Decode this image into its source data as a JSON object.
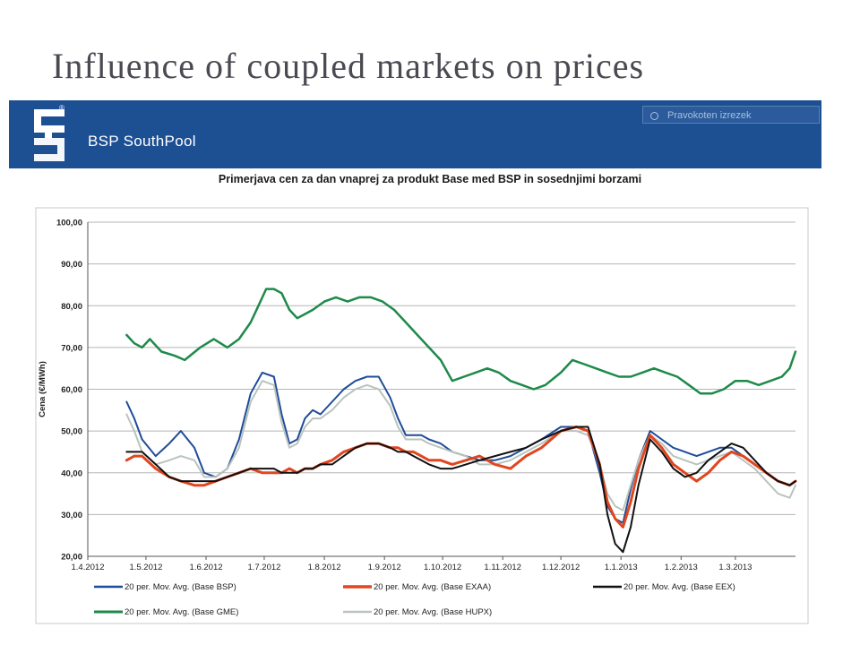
{
  "slide": {
    "title": "Influence of coupled markets on prices"
  },
  "banner": {
    "brand": "BSP SouthPool",
    "search_placeholder": "Pravokoten izrezek",
    "reg_mark": "®"
  },
  "colors": {
    "banner": "#1d4f93",
    "BSP": "#1f4c9a",
    "EXAA": "#e0461f",
    "EEX": "#111111",
    "GME": "#1e8a4a",
    "HUPX": "#b9c4be"
  },
  "chart_data": {
    "type": "line",
    "title": "Primerjava cen za dan vnaprej za produkt Base med BSP in sosednjimi borzami",
    "ylabel": "Cena (€/MWh)",
    "xlabel": "",
    "ylim": [
      20,
      100
    ],
    "y_ticks": [
      "100,00",
      "90,00",
      "80,00",
      "70,00",
      "60,00",
      "50,00",
      "40,00",
      "30,00",
      "20,00"
    ],
    "y_tick_values": [
      100,
      90,
      80,
      70,
      60,
      50,
      40,
      30,
      20
    ],
    "x_ticks": [
      "1.4.2012",
      "1.5.2012",
      "1.6.2012",
      "1.7.2012",
      "1.8.2012",
      "1.9.2012",
      "1.10.2012",
      "1.11.2012",
      "1.12.2012",
      "1.1.2013",
      "1.2.2013",
      "1.3.2013"
    ],
    "x_tick_days": [
      0,
      30,
      61,
      91,
      122,
      153,
      183,
      214,
      244,
      275,
      306,
      334
    ],
    "xlim": [
      0,
      365
    ],
    "grid": true,
    "legend_position": "bottom",
    "series": [
      {
        "key": "BSP",
        "name": "20 per. Mov. Avg. (Base BSP)",
        "width": 2,
        "x": [
          20,
          24,
          28,
          35,
          42,
          48,
          55,
          60,
          66,
          72,
          78,
          84,
          90,
          96,
          100,
          104,
          108,
          112,
          116,
          120,
          126,
          132,
          138,
          144,
          150,
          156,
          160,
          164,
          168,
          172,
          176,
          182,
          188,
          195,
          202,
          210,
          218,
          226,
          234,
          244,
          252,
          258,
          264,
          268,
          272,
          276,
          280,
          284,
          290,
          296,
          302,
          308,
          314,
          320,
          326,
          332,
          338,
          344,
          350,
          356,
          362,
          365
        ],
        "y": [
          57,
          53,
          48,
          44,
          47,
          50,
          46,
          40,
          39,
          41,
          48,
          59,
          64,
          63,
          54,
          47,
          48,
          53,
          55,
          54,
          57,
          60,
          62,
          63,
          63,
          58,
          53,
          49,
          49,
          49,
          48,
          47,
          45,
          44,
          43,
          43,
          44,
          46,
          48,
          51,
          51,
          50,
          40,
          32,
          29,
          28,
          36,
          43,
          50,
          48,
          46,
          45,
          44,
          45,
          46,
          46,
          44,
          42,
          40,
          38,
          37,
          38
        ]
      },
      {
        "key": "HUPX",
        "name": "20 per. Mov. Avg. (Base HUPX)",
        "width": 2,
        "x": [
          20,
          24,
          28,
          35,
          42,
          48,
          55,
          60,
          66,
          72,
          78,
          84,
          90,
          96,
          100,
          104,
          108,
          112,
          116,
          120,
          126,
          132,
          138,
          144,
          150,
          156,
          160,
          164,
          168,
          172,
          176,
          182,
          188,
          195,
          202,
          210,
          218,
          226,
          234,
          244,
          252,
          258,
          264,
          268,
          272,
          276,
          280,
          284,
          290,
          296,
          302,
          308,
          314,
          320,
          326,
          332,
          338,
          344,
          350,
          356,
          362,
          365
        ],
        "y": [
          54,
          50,
          45,
          42,
          43,
          44,
          43,
          39,
          39,
          41,
          46,
          57,
          62,
          61,
          52,
          46,
          47,
          51,
          53,
          53,
          55,
          58,
          60,
          61,
          60,
          56,
          51,
          48,
          48,
          48,
          47,
          46,
          45,
          44,
          42,
          42,
          43,
          45,
          47,
          50,
          50,
          49,
          42,
          35,
          32,
          31,
          37,
          43,
          49,
          47,
          44,
          43,
          42,
          43,
          44,
          45,
          43,
          41,
          38,
          35,
          34,
          37
        ]
      },
      {
        "key": "EXAA",
        "name": "20 per. Mov. Avg. (Base EXAA)",
        "width": 3,
        "x": [
          20,
          24,
          28,
          35,
          42,
          48,
          55,
          60,
          66,
          72,
          78,
          84,
          90,
          96,
          100,
          104,
          108,
          112,
          116,
          120,
          126,
          132,
          138,
          144,
          150,
          156,
          160,
          164,
          168,
          172,
          176,
          182,
          188,
          195,
          202,
          210,
          218,
          226,
          234,
          244,
          252,
          258,
          264,
          268,
          272,
          276,
          280,
          284,
          290,
          296,
          302,
          308,
          314,
          320,
          326,
          332,
          338,
          344,
          350,
          356,
          362,
          365
        ],
        "y": [
          43,
          44,
          44,
          41,
          39,
          38,
          37,
          37,
          38,
          39,
          40,
          41,
          40,
          40,
          40,
          41,
          40,
          41,
          41,
          42,
          43,
          45,
          46,
          47,
          47,
          46,
          46,
          45,
          45,
          44,
          43,
          43,
          42,
          43,
          44,
          42,
          41,
          44,
          46,
          50,
          51,
          50,
          42,
          33,
          29,
          27,
          33,
          41,
          49,
          46,
          42,
          40,
          38,
          40,
          43,
          45,
          44,
          42,
          40,
          38,
          37,
          38
        ]
      },
      {
        "key": "EEX",
        "name": "20 per. Mov. Avg. (Base EEX)",
        "width": 2,
        "x": [
          20,
          24,
          28,
          35,
          42,
          48,
          55,
          60,
          66,
          72,
          78,
          84,
          90,
          96,
          100,
          104,
          108,
          112,
          116,
          120,
          126,
          132,
          138,
          144,
          150,
          156,
          160,
          164,
          168,
          172,
          176,
          182,
          188,
          195,
          202,
          210,
          218,
          226,
          234,
          244,
          252,
          258,
          264,
          268,
          272,
          276,
          280,
          284,
          290,
          296,
          302,
          308,
          314,
          320,
          326,
          332,
          338,
          344,
          350,
          356,
          362,
          365
        ],
        "y": [
          45,
          45,
          45,
          42,
          39,
          38,
          38,
          38,
          38,
          39,
          40,
          41,
          41,
          41,
          40,
          40,
          40,
          41,
          41,
          42,
          42,
          44,
          46,
          47,
          47,
          46,
          45,
          45,
          44,
          43,
          42,
          41,
          41,
          42,
          43,
          44,
          45,
          46,
          48,
          50,
          51,
          51,
          42,
          30,
          23,
          21,
          27,
          37,
          48,
          45,
          41,
          39,
          40,
          43,
          45,
          47,
          46,
          43,
          40,
          38,
          37,
          38
        ]
      },
      {
        "key": "GME",
        "name": "20 per. Mov. Avg. (Base GME)",
        "width": 2.5,
        "x": [
          20,
          24,
          28,
          32,
          38,
          45,
          50,
          58,
          65,
          72,
          78,
          84,
          88,
          92,
          96,
          100,
          104,
          108,
          112,
          116,
          122,
          128,
          134,
          140,
          146,
          152,
          158,
          164,
          170,
          176,
          182,
          188,
          194,
          200,
          206,
          212,
          218,
          224,
          230,
          236,
          244,
          250,
          256,
          262,
          268,
          274,
          280,
          286,
          292,
          298,
          304,
          310,
          316,
          322,
          328,
          334,
          340,
          346,
          352,
          358,
          362,
          365
        ],
        "y": [
          73,
          71,
          70,
          72,
          69,
          68,
          67,
          70,
          72,
          70,
          72,
          76,
          80,
          84,
          84,
          83,
          79,
          77,
          78,
          79,
          81,
          82,
          81,
          82,
          82,
          81,
          79,
          76,
          73,
          70,
          67,
          62,
          63,
          64,
          65,
          64,
          62,
          61,
          60,
          61,
          64,
          67,
          66,
          65,
          64,
          63,
          63,
          64,
          65,
          64,
          63,
          61,
          59,
          59,
          60,
          62,
          62,
          61,
          62,
          63,
          65,
          69
        ]
      }
    ]
  }
}
